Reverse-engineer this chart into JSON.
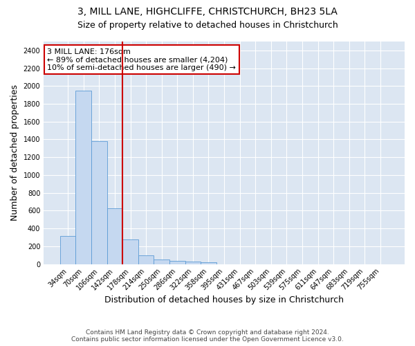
{
  "title_line1": "3, MILL LANE, HIGHCLIFFE, CHRISTCHURCH, BH23 5LA",
  "title_line2": "Size of property relative to detached houses in Christchurch",
  "xlabel": "Distribution of detached houses by size in Christchurch",
  "ylabel": "Number of detached properties",
  "annotation_line1": "3 MILL LANE: 176sqm",
  "annotation_line2": "← 89% of detached houses are smaller (4,204)",
  "annotation_line3": "10% of semi-detached houses are larger (490) →",
  "bar_color": "#c5d8f0",
  "bar_edge_color": "#5b9bd5",
  "vline_x": 3.5,
  "vline_color": "#cc0000",
  "categories": [
    "34sqm",
    "70sqm",
    "106sqm",
    "142sqm",
    "178sqm",
    "214sqm",
    "250sqm",
    "286sqm",
    "322sqm",
    "358sqm",
    "395sqm",
    "431sqm",
    "467sqm",
    "503sqm",
    "539sqm",
    "575sqm",
    "611sqm",
    "647sqm",
    "683sqm",
    "719sqm",
    "755sqm"
  ],
  "values": [
    315,
    1950,
    1380,
    630,
    280,
    100,
    50,
    35,
    25,
    20,
    0,
    0,
    0,
    0,
    0,
    0,
    0,
    0,
    0,
    0,
    0
  ],
  "ylim": [
    0,
    2500
  ],
  "yticks": [
    0,
    200,
    400,
    600,
    800,
    1000,
    1200,
    1400,
    1600,
    1800,
    2000,
    2200,
    2400
  ],
  "footnote1": "Contains HM Land Registry data © Crown copyright and database right 2024.",
  "footnote2": "Contains public sector information licensed under the Open Government Licence v3.0.",
  "fig_background": "#ffffff",
  "plot_background": "#dce6f2",
  "grid_color": "#ffffff",
  "title_fontsize": 10,
  "subtitle_fontsize": 9,
  "axis_label_fontsize": 9,
  "tick_fontsize": 7,
  "annotation_fontsize": 8,
  "footnote_fontsize": 6.5,
  "annotation_box_color": "#ffffff",
  "annotation_box_edge": "#cc0000"
}
